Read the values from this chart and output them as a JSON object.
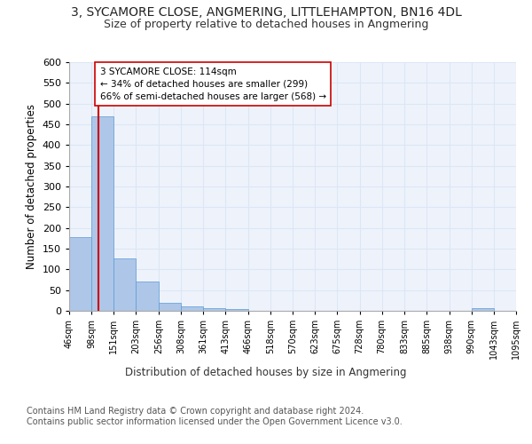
{
  "title": "3, SYCAMORE CLOSE, ANGMERING, LITTLEHAMPTON, BN16 4DL",
  "subtitle": "Size of property relative to detached houses in Angmering",
  "xlabel": "Distribution of detached houses by size in Angmering",
  "ylabel": "Number of detached properties",
  "bin_edges": [
    46,
    98,
    151,
    203,
    256,
    308,
    361,
    413,
    466,
    518,
    570,
    623,
    675,
    728,
    780,
    833,
    885,
    938,
    990,
    1043,
    1095
  ],
  "bin_labels": [
    "46sqm",
    "98sqm",
    "151sqm",
    "203sqm",
    "256sqm",
    "308sqm",
    "361sqm",
    "413sqm",
    "466sqm",
    "518sqm",
    "570sqm",
    "623sqm",
    "675sqm",
    "728sqm",
    "780sqm",
    "833sqm",
    "885sqm",
    "938sqm",
    "990sqm",
    "1043sqm",
    "1095sqm"
  ],
  "bar_heights": [
    178,
    469,
    126,
    70,
    19,
    10,
    7,
    5,
    0,
    0,
    0,
    0,
    0,
    0,
    0,
    0,
    0,
    0,
    6,
    0
  ],
  "bar_color": "#aec6e8",
  "bar_edge_color": "#5b9bd5",
  "grid_color": "#dce6f5",
  "background_color": "#eef3fb",
  "property_line_x": 114,
  "property_line_color": "#cc0000",
  "annotation_text": "3 SYCAMORE CLOSE: 114sqm\n← 34% of detached houses are smaller (299)\n66% of semi-detached houses are larger (568) →",
  "annotation_box_color": "#ffffff",
  "annotation_box_edge": "#cc0000",
  "ylim": [
    0,
    600
  ],
  "yticks": [
    0,
    50,
    100,
    150,
    200,
    250,
    300,
    350,
    400,
    450,
    500,
    550,
    600
  ],
  "footer_line1": "Contains HM Land Registry data © Crown copyright and database right 2024.",
  "footer_line2": "Contains public sector information licensed under the Open Government Licence v3.0.",
  "title_fontsize": 10,
  "subtitle_fontsize": 9,
  "xlabel_fontsize": 8.5,
  "ylabel_fontsize": 8.5,
  "footer_fontsize": 7
}
